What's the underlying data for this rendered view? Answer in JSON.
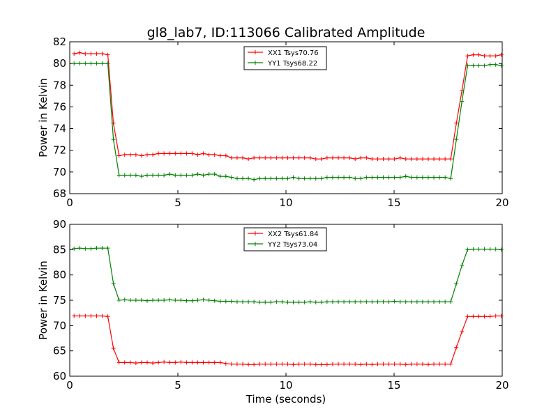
{
  "title": "gl8_lab7, ID:113066 Calibrated Amplitude",
  "xlabel": "Time (seconds)",
  "colors": {
    "red": "#ff0000",
    "green": "#008000"
  },
  "chart_data": [
    {
      "type": "line",
      "title": "gl8_lab7, ID:113066 Calibrated Amplitude",
      "xlabel": "",
      "ylabel": "Power in Kelvin",
      "xlim": [
        0,
        20
      ],
      "ylim": [
        68,
        82
      ],
      "xticks": [
        "0",
        "5",
        "10",
        "15",
        "20"
      ],
      "yticks": [
        "68",
        "70",
        "72",
        "74",
        "76",
        "78",
        "80",
        "82"
      ],
      "grid": false,
      "legend_position": "top-center",
      "x": [
        0.2,
        0.46,
        0.72,
        0.98,
        1.24,
        1.5,
        1.76,
        2.02,
        2.28,
        2.54,
        2.8,
        3.06,
        3.32,
        3.58,
        3.84,
        4.1,
        4.36,
        4.62,
        4.88,
        5.14,
        5.4,
        5.66,
        5.92,
        6.18,
        6.44,
        6.7,
        6.96,
        7.22,
        7.48,
        7.74,
        8.0,
        8.26,
        8.52,
        8.78,
        9.04,
        9.3,
        9.56,
        9.82,
        10.08,
        10.34,
        10.6,
        10.86,
        11.12,
        11.38,
        11.64,
        11.9,
        12.16,
        12.42,
        12.68,
        12.94,
        13.2,
        13.46,
        13.72,
        13.98,
        14.24,
        14.5,
        14.76,
        15.02,
        15.28,
        15.54,
        15.8,
        16.06,
        16.32,
        16.58,
        16.84,
        17.1,
        17.36,
        17.62,
        17.88,
        18.14,
        18.4,
        18.66,
        18.92,
        19.18,
        19.44,
        19.7,
        19.96
      ],
      "series": [
        {
          "name": "XX1 Tsys70.76",
          "color": "#ff0000",
          "values": [
            80.9,
            81.0,
            80.9,
            80.9,
            80.9,
            80.9,
            80.8,
            74.5,
            71.5,
            71.6,
            71.6,
            71.6,
            71.5,
            71.6,
            71.6,
            71.7,
            71.7,
            71.7,
            71.7,
            71.7,
            71.7,
            71.7,
            71.6,
            71.7,
            71.6,
            71.6,
            71.5,
            71.5,
            71.3,
            71.3,
            71.3,
            71.2,
            71.3,
            71.3,
            71.3,
            71.3,
            71.3,
            71.3,
            71.3,
            71.3,
            71.3,
            71.3,
            71.3,
            71.2,
            71.2,
            71.3,
            71.3,
            71.3,
            71.3,
            71.3,
            71.2,
            71.3,
            71.3,
            71.2,
            71.2,
            71.2,
            71.2,
            71.2,
            71.3,
            71.2,
            71.2,
            71.2,
            71.2,
            71.2,
            71.2,
            71.2,
            71.2,
            71.2,
            74.5,
            77.5,
            80.7,
            80.8,
            80.8,
            80.7,
            80.7,
            80.7,
            80.8
          ]
        },
        {
          "name": "YY1 Tsys68.22",
          "color": "#008000",
          "values": [
            80.0,
            80.0,
            80.0,
            80.0,
            80.0,
            80.0,
            80.0,
            73.0,
            69.7,
            69.7,
            69.7,
            69.7,
            69.6,
            69.7,
            69.7,
            69.7,
            69.7,
            69.8,
            69.7,
            69.7,
            69.7,
            69.7,
            69.8,
            69.7,
            69.8,
            69.8,
            69.6,
            69.6,
            69.5,
            69.4,
            69.4,
            69.4,
            69.3,
            69.4,
            69.4,
            69.4,
            69.4,
            69.4,
            69.4,
            69.5,
            69.4,
            69.4,
            69.4,
            69.4,
            69.4,
            69.5,
            69.5,
            69.5,
            69.5,
            69.5,
            69.4,
            69.4,
            69.5,
            69.5,
            69.5,
            69.5,
            69.5,
            69.5,
            69.5,
            69.6,
            69.5,
            69.5,
            69.5,
            69.5,
            69.5,
            69.5,
            69.5,
            69.4,
            73.0,
            76.5,
            79.8,
            79.8,
            79.8,
            79.8,
            79.9,
            79.9,
            79.8
          ]
        }
      ]
    },
    {
      "type": "line",
      "title": "",
      "xlabel": "Time (seconds)",
      "ylabel": "Power in Kelvin",
      "xlim": [
        0,
        20
      ],
      "ylim": [
        60,
        90
      ],
      "xticks": [
        "0",
        "5",
        "10",
        "15",
        "20"
      ],
      "yticks": [
        "60",
        "65",
        "70",
        "75",
        "80",
        "85",
        "90"
      ],
      "grid": false,
      "legend_position": "top-center",
      "x": [
        0.2,
        0.46,
        0.72,
        0.98,
        1.24,
        1.5,
        1.76,
        2.02,
        2.28,
        2.54,
        2.8,
        3.06,
        3.32,
        3.58,
        3.84,
        4.1,
        4.36,
        4.62,
        4.88,
        5.14,
        5.4,
        5.66,
        5.92,
        6.18,
        6.44,
        6.7,
        6.96,
        7.22,
        7.48,
        7.74,
        8.0,
        8.26,
        8.52,
        8.78,
        9.04,
        9.3,
        9.56,
        9.82,
        10.08,
        10.34,
        10.6,
        10.86,
        11.12,
        11.38,
        11.64,
        11.9,
        12.16,
        12.42,
        12.68,
        12.94,
        13.2,
        13.46,
        13.72,
        13.98,
        14.24,
        14.5,
        14.76,
        15.02,
        15.28,
        15.54,
        15.8,
        16.06,
        16.32,
        16.58,
        16.84,
        17.1,
        17.36,
        17.62,
        17.88,
        18.14,
        18.4,
        18.66,
        18.92,
        19.18,
        19.44,
        19.7,
        19.96
      ],
      "series": [
        {
          "name": "XX2 Tsys61.84",
          "color": "#ff0000",
          "values": [
            71.9,
            71.9,
            71.9,
            71.9,
            71.9,
            71.9,
            71.8,
            65.5,
            62.7,
            62.7,
            62.7,
            62.6,
            62.7,
            62.7,
            62.6,
            62.7,
            62.8,
            62.7,
            62.7,
            62.8,
            62.7,
            62.7,
            62.7,
            62.7,
            62.7,
            62.7,
            62.7,
            62.5,
            62.4,
            62.4,
            62.4,
            62.3,
            62.3,
            62.4,
            62.4,
            62.4,
            62.4,
            62.4,
            62.4,
            62.3,
            62.4,
            62.4,
            62.4,
            62.3,
            62.3,
            62.3,
            62.4,
            62.4,
            62.4,
            62.4,
            62.4,
            62.3,
            62.4,
            62.3,
            62.4,
            62.4,
            62.4,
            62.4,
            62.4,
            62.3,
            62.4,
            62.4,
            62.4,
            62.3,
            62.4,
            62.4,
            62.4,
            62.4,
            65.7,
            68.8,
            71.8,
            71.8,
            71.8,
            71.8,
            71.8,
            71.9,
            71.9
          ]
        },
        {
          "name": "YY2 Tsys73.04",
          "color": "#008000",
          "values": [
            85.2,
            85.3,
            85.2,
            85.2,
            85.3,
            85.3,
            85.3,
            78.3,
            75.0,
            75.1,
            75.0,
            75.0,
            75.0,
            74.9,
            75.0,
            75.0,
            75.0,
            75.1,
            75.0,
            75.0,
            74.9,
            74.9,
            75.0,
            75.1,
            75.0,
            74.9,
            74.8,
            74.8,
            74.8,
            74.7,
            74.7,
            74.7,
            74.7,
            74.6,
            74.6,
            74.6,
            74.7,
            74.7,
            74.6,
            74.6,
            74.6,
            74.6,
            74.7,
            74.6,
            74.6,
            74.7,
            74.7,
            74.7,
            74.7,
            74.7,
            74.7,
            74.7,
            74.7,
            74.7,
            74.7,
            74.7,
            74.7,
            74.8,
            74.7,
            74.7,
            74.7,
            74.7,
            74.7,
            74.7,
            74.7,
            74.7,
            74.7,
            74.7,
            78.3,
            81.9,
            85.0,
            85.1,
            85.1,
            85.1,
            85.1,
            85.1,
            85.0
          ]
        }
      ]
    }
  ]
}
